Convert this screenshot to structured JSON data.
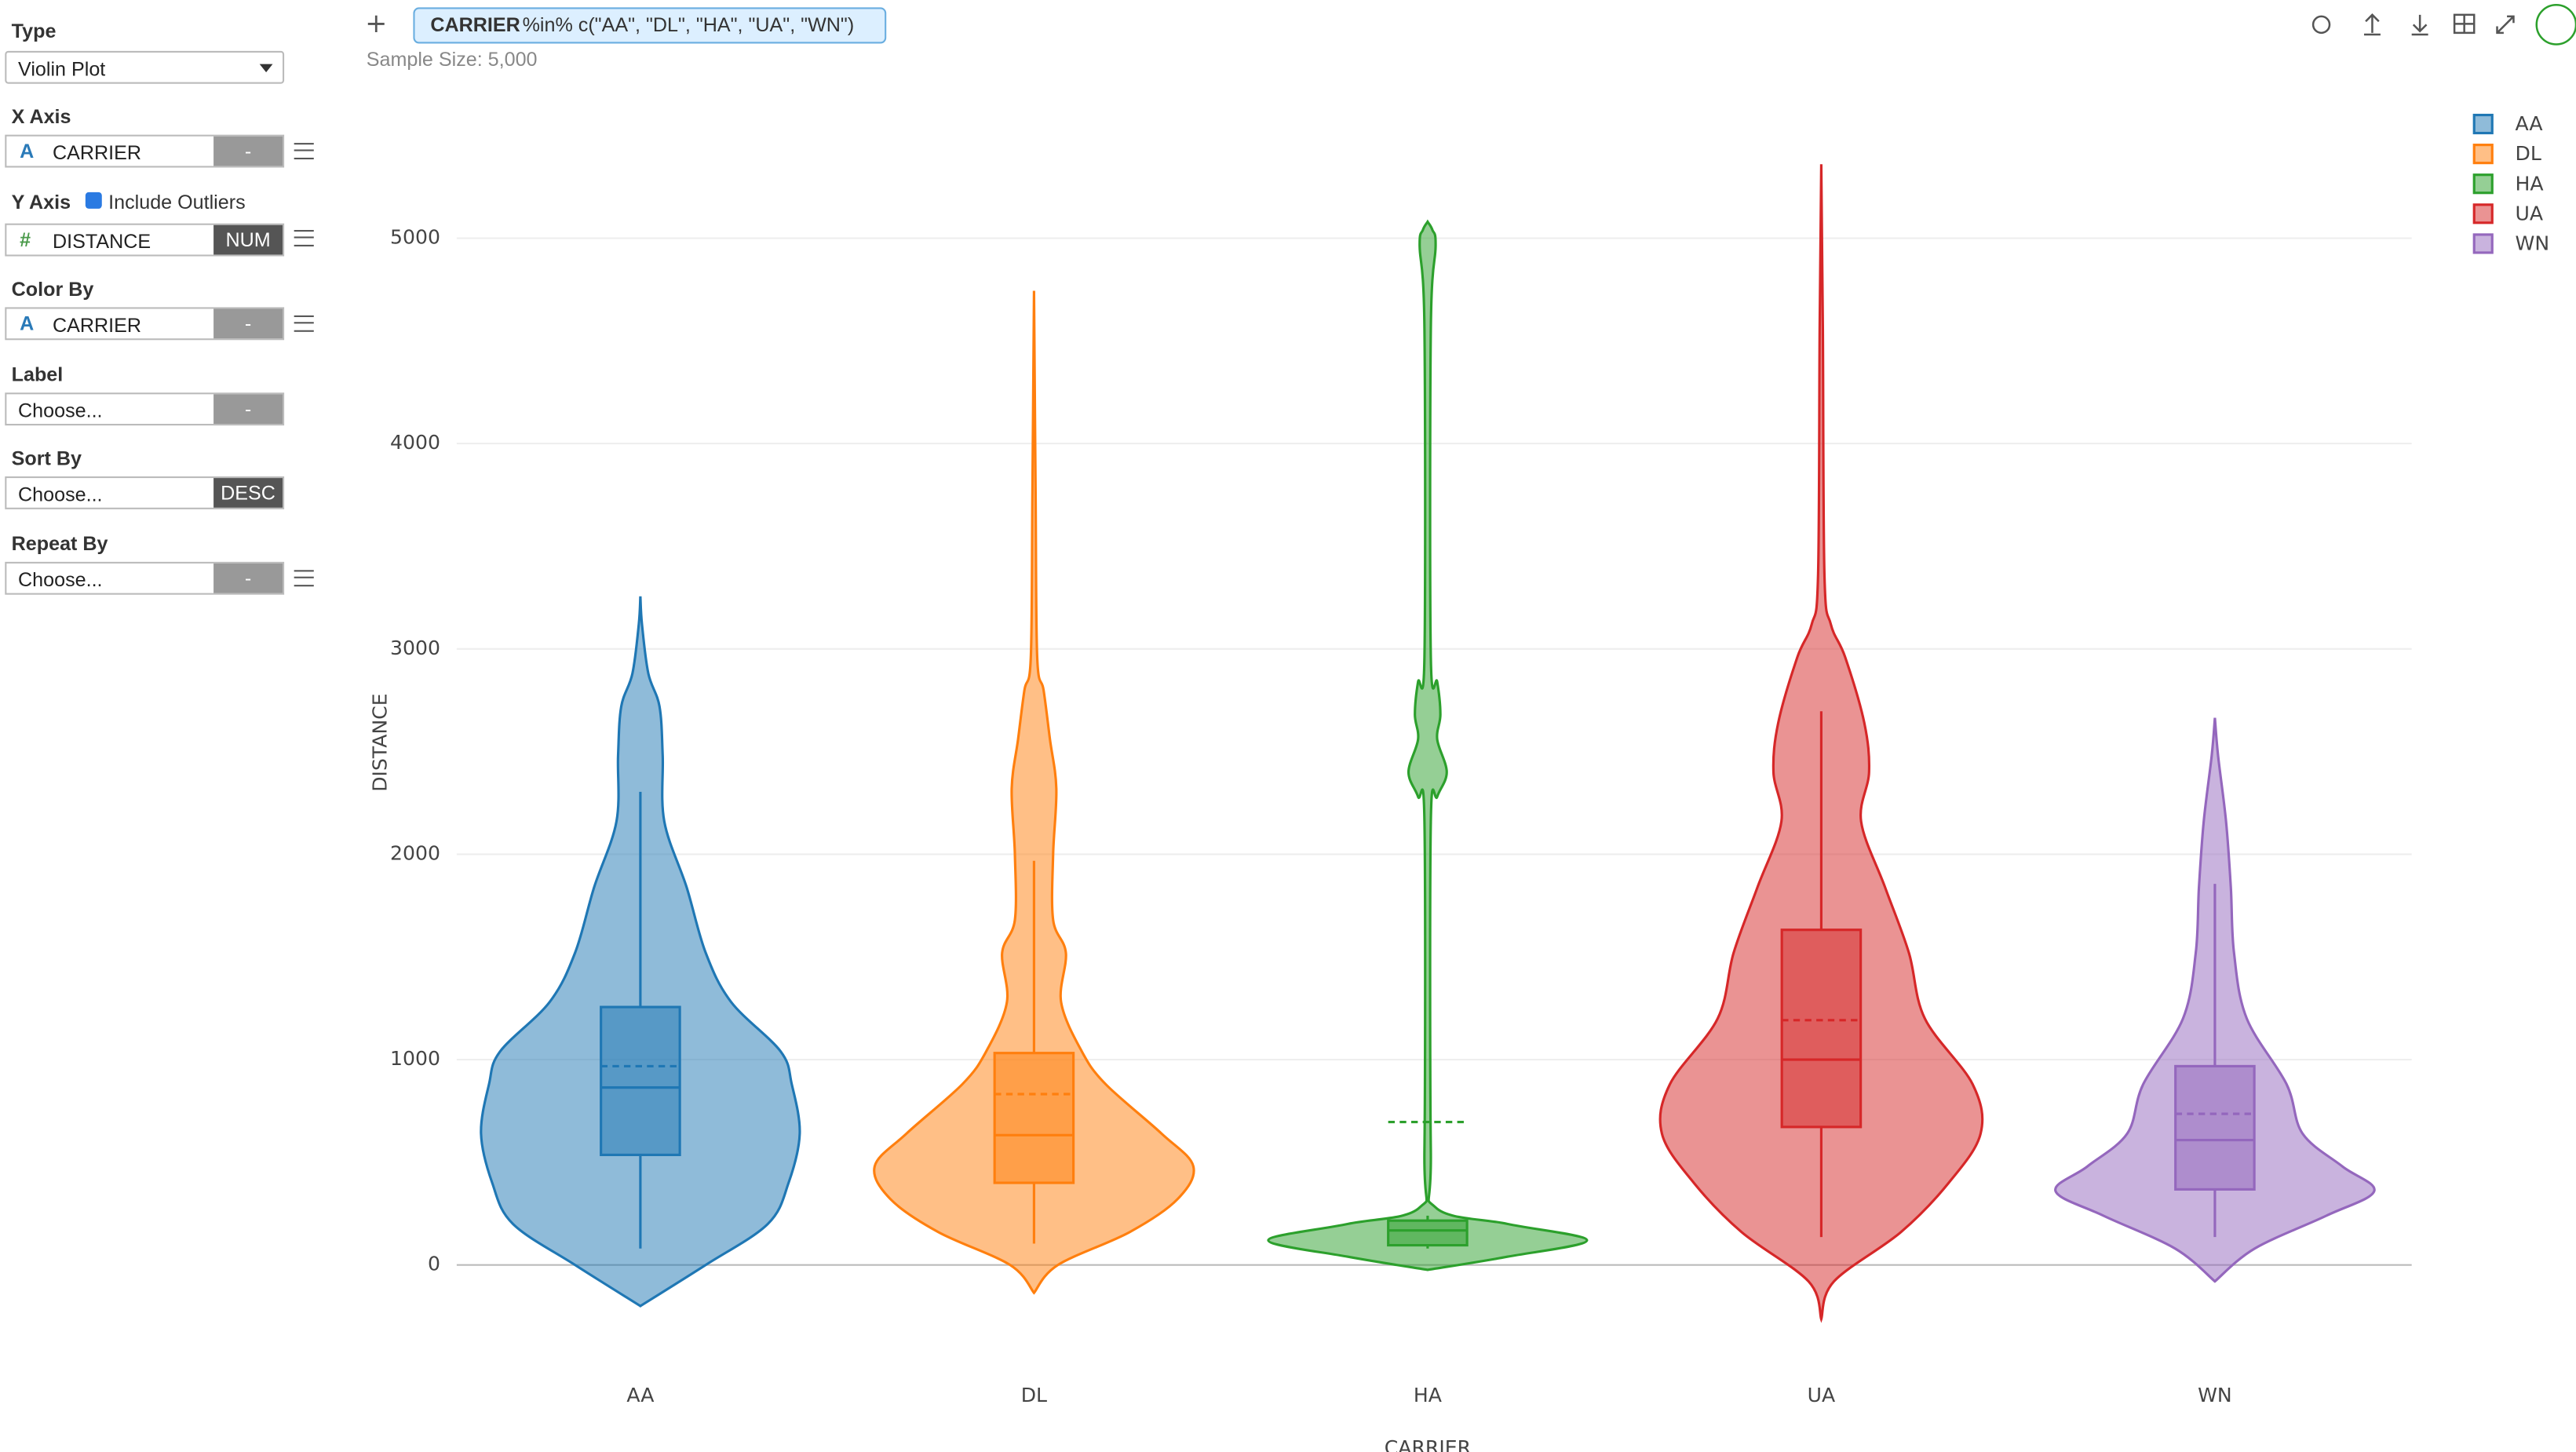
{
  "sidebar": {
    "type": {
      "label": "Type",
      "value": "Violin Plot"
    },
    "x_axis": {
      "label": "X Axis",
      "icon": "A",
      "field": "CARRIER",
      "button": "-"
    },
    "y_axis": {
      "label": "Y Axis",
      "option": "Include Outliers",
      "icon": "#",
      "field": "DISTANCE",
      "button": "NUM"
    },
    "color_by": {
      "label": "Color By",
      "icon": "A",
      "field": "CARRIER",
      "button": "-"
    },
    "label": {
      "label": "Label",
      "field": "Choose...",
      "button": "-"
    },
    "sort_by": {
      "label": "Sort By",
      "field": "Choose...",
      "button": "DESC"
    },
    "repeat_by": {
      "label": "Repeat By",
      "field": "Choose...",
      "button": "-"
    }
  },
  "toolbar": {
    "add": "+",
    "filter": {
      "column": "CARRIER",
      "expression": "%in% c(\"AA\", \"DL\", \"HA\", \"UA\", \"WN\")"
    },
    "sample_size": "Sample Size: 5,000"
  },
  "chart_data": {
    "type": "violin",
    "x_label": "CARRIER",
    "y_label": "DISTANCE",
    "categories": [
      "AA",
      "DL",
      "HA",
      "UA",
      "WN"
    ],
    "ylim": [
      -480,
      5600
    ],
    "yticks": [
      0,
      1000,
      2000,
      3000,
      4000,
      5000
    ],
    "grid": true,
    "legend": "top-right",
    "series": [
      {
        "name": "AA",
        "color": "#1f77b4",
        "min": 80,
        "q1": 536,
        "median": 864,
        "q3": 1256,
        "max": 2304,
        "mean": 968,
        "density_y": [
          -200,
          0,
          200,
          400,
          640,
          880,
          1040,
          1280,
          1520,
          1840,
          2160,
          2480,
          2720,
          2880,
          3120,
          3256
        ],
        "density": [
          0,
          0.41,
          0.8,
          0.93,
          1,
          0.95,
          0.88,
          0.57,
          0.41,
          0.29,
          0.15,
          0.14,
          0.12,
          0.05,
          0.01,
          0
        ]
      },
      {
        "name": "DL",
        "color": "#ff7f0e",
        "min": 104,
        "q1": 400,
        "median": 632,
        "q3": 1032,
        "max": 1968,
        "mean": 832,
        "density_y": [
          -136,
          0,
          160,
          320,
          480,
          640,
          880,
          1040,
          1280,
          1520,
          1680,
          2000,
          2320,
          2560,
          2800,
          2960,
          3760,
          4744
        ],
        "density": [
          0,
          0.15,
          0.6,
          0.9,
          1,
          0.8,
          0.45,
          0.3,
          0.17,
          0.2,
          0.12,
          0.12,
          0.14,
          0.1,
          0.06,
          0.02,
          0.01,
          0
        ]
      },
      {
        "name": "HA",
        "color": "#2ca02c",
        "min": 80,
        "q1": 96,
        "median": 168,
        "q3": 216,
        "max": 240,
        "mean": 696,
        "density_y": [
          -24,
          40,
          120,
          200,
          280,
          560,
          2160,
          2280,
          2400,
          2560,
          2680,
          2840,
          2960,
          4560,
          4960,
          5040,
          5080
        ],
        "density": [
          0,
          0.5,
          1,
          0.5,
          0.05,
          0.02,
          0.02,
          0.06,
          0.12,
          0.06,
          0.08,
          0.06,
          0.02,
          0.02,
          0.05,
          0.03,
          0
        ]
      },
      {
        "name": "UA",
        "color": "#d62728",
        "min": 136,
        "q1": 672,
        "median": 1000,
        "q3": 1632,
        "max": 2696,
        "mean": 1192,
        "density_y": [
          -264,
          -80,
          160,
          400,
          640,
          880,
          1200,
          1520,
          1840,
          2160,
          2400,
          2640,
          2960,
          3120,
          3360,
          4560,
          5360
        ],
        "density": [
          0,
          0.08,
          0.5,
          0.8,
          1,
          0.95,
          0.65,
          0.55,
          0.4,
          0.25,
          0.3,
          0.27,
          0.15,
          0.06,
          0.02,
          0.01,
          0
        ]
      },
      {
        "name": "WN",
        "color": "#9467bd",
        "min": 136,
        "q1": 368,
        "median": 608,
        "q3": 968,
        "max": 1856,
        "mean": 736,
        "density_y": [
          -80,
          80,
          240,
          360,
          480,
          640,
          880,
          1200,
          1520,
          1840,
          2160,
          2480,
          2664
        ],
        "density": [
          0,
          0.25,
          0.7,
          1,
          0.8,
          0.55,
          0.45,
          0.2,
          0.12,
          0.1,
          0.07,
          0.02,
          0
        ]
      }
    ]
  }
}
